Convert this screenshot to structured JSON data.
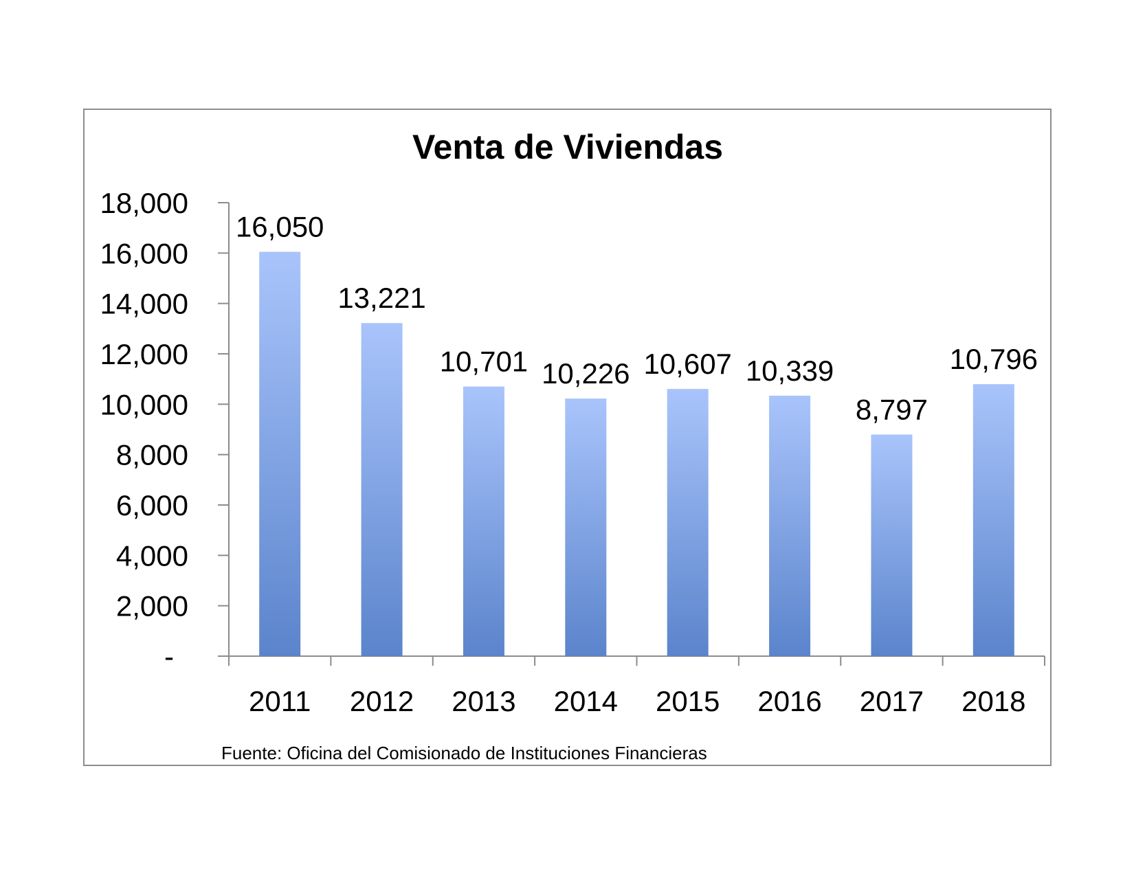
{
  "chart_data": {
    "type": "bar",
    "title": "Venta de Viviendas",
    "categories": [
      "2011",
      "2012",
      "2013",
      "2014",
      "2015",
      "2016",
      "2017",
      "2018"
    ],
    "values": [
      16050,
      13221,
      10701,
      10226,
      10607,
      10339,
      8797,
      10796
    ],
    "value_labels": [
      "16,050",
      "13,221",
      "10,701",
      "10,226",
      "10,607",
      "10,339",
      "8,797",
      "10,796"
    ],
    "ylim": [
      0,
      18000
    ],
    "yticks": [
      0,
      2000,
      4000,
      6000,
      8000,
      10000,
      12000,
      14000,
      16000,
      18000
    ],
    "ytick_labels": [
      "-",
      "2,000",
      "4,000",
      "6,000",
      "8,000",
      "10,000",
      "12,000",
      "14,000",
      "16,000",
      "18,000"
    ],
    "grid": false,
    "legend": "none",
    "bar_color_top": "#a9c4fb",
    "bar_color_bottom": "#5b84cc",
    "source": "Fuente: Oficina del Comisionado de Instituciones  Financieras"
  }
}
